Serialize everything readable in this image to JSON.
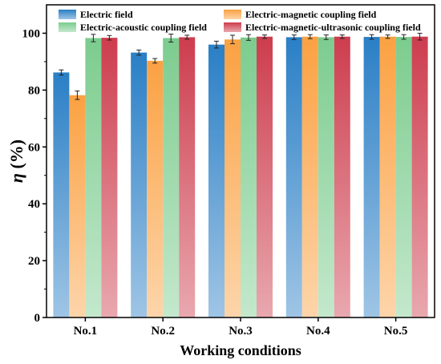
{
  "chart_data": {
    "type": "bar",
    "xlabel": "Working conditions",
    "ylabel_symbol": "η",
    "ylabel_unit": " (%)",
    "ylim": [
      0,
      110
    ],
    "yticks": [
      0,
      20,
      40,
      60,
      80,
      100
    ],
    "categories": [
      "No.1",
      "No.2",
      "No.3",
      "No.4",
      "No.5"
    ],
    "legend_position": "top",
    "series": [
      {
        "name": "Electric field",
        "color": "#2a7fc6",
        "values": [
          86.2,
          93.2,
          96.0,
          98.6,
          98.7
        ],
        "errors": [
          0.9,
          0.9,
          1.2,
          0.8,
          0.8
        ]
      },
      {
        "name": "Electric-magnetic coupling field",
        "color": "#fba142",
        "values": [
          78.2,
          90.3,
          97.8,
          98.8,
          98.8
        ],
        "errors": [
          1.5,
          0.8,
          1.5,
          0.7,
          0.6
        ]
      },
      {
        "name": "Electric-acoustic coupling field",
        "color": "#7ccc8e",
        "values": [
          98.3,
          98.3,
          98.5,
          98.6,
          98.7
        ],
        "errors": [
          1.3,
          1.4,
          1.0,
          0.8,
          0.8
        ]
      },
      {
        "name": "Electric-magnetic-ultrasonic coupling field",
        "color": "#cd3d4e",
        "values": [
          98.4,
          98.6,
          98.8,
          98.8,
          98.8
        ],
        "errors": [
          0.8,
          0.7,
          0.6,
          0.6,
          1.2
        ]
      }
    ]
  }
}
